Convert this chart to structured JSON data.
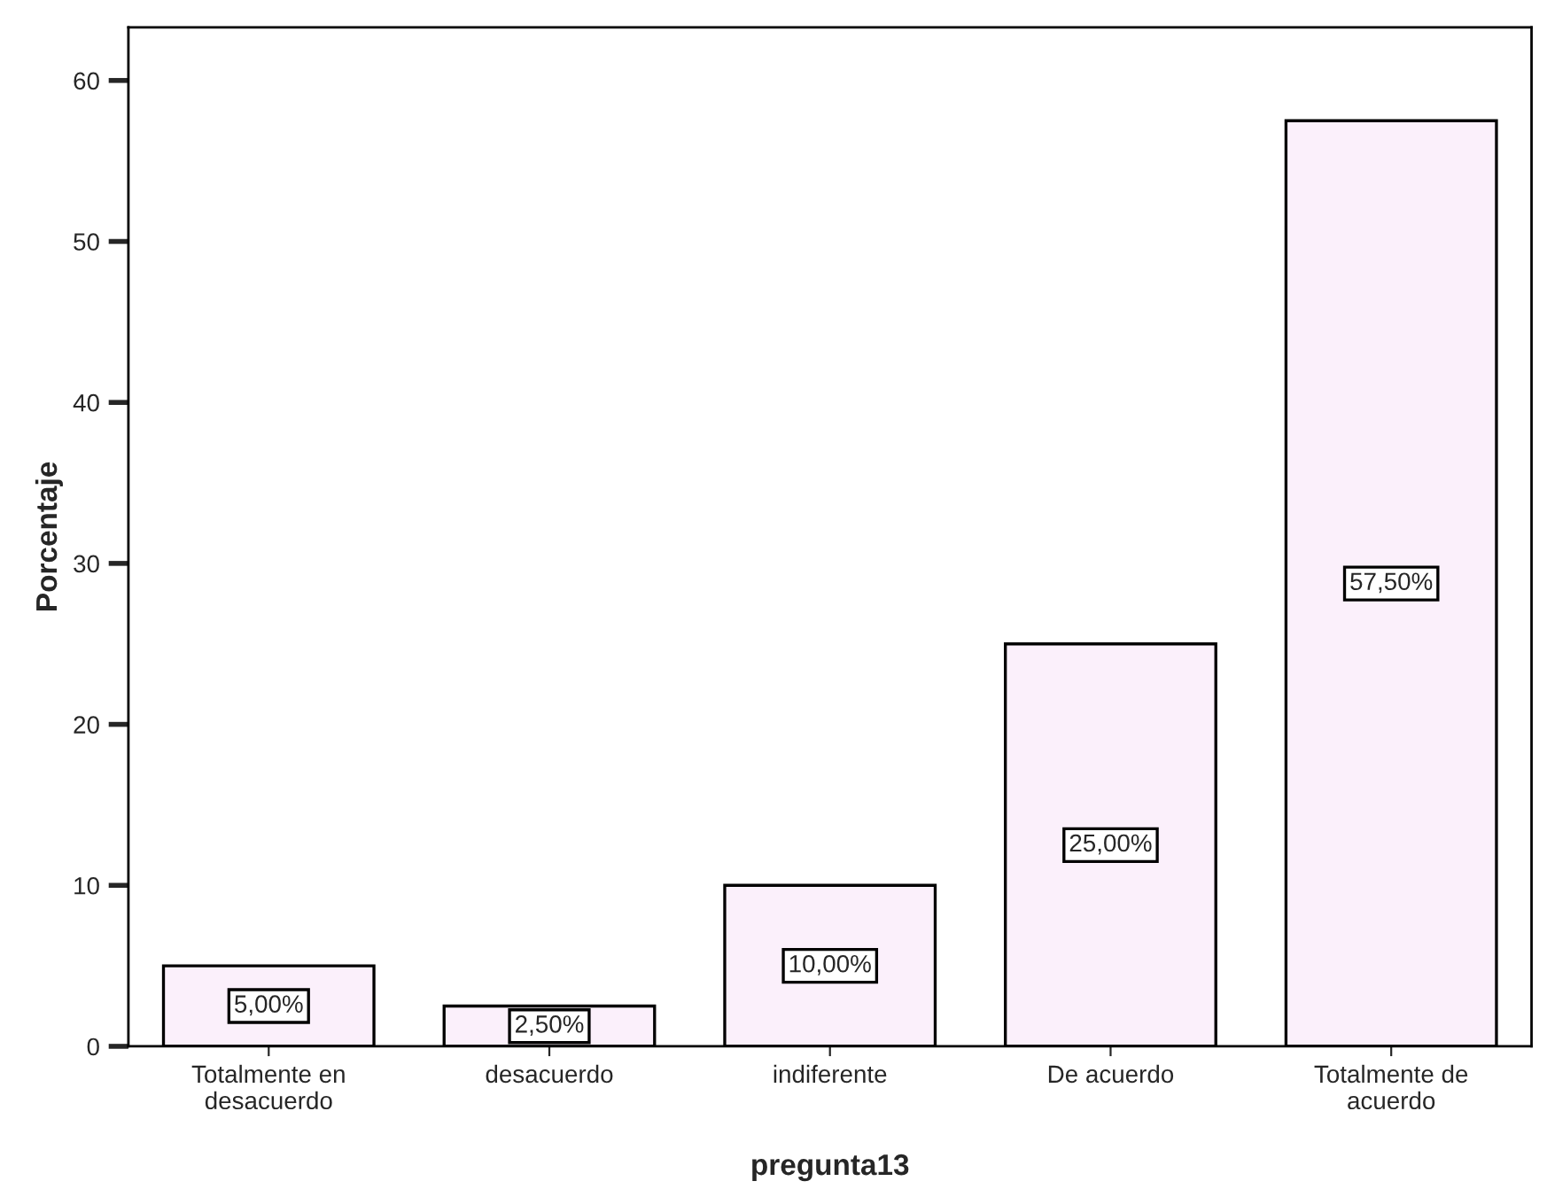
{
  "chart_data": {
    "type": "bar",
    "xlabel": "pregunta13",
    "ylabel": "Porcentaje",
    "categories": [
      "Totalmente en\ndesacuerdo",
      "desacuerdo",
      "indiferente",
      "De acuerdo",
      "Totalmente de\nacuerdo"
    ],
    "values": [
      5.0,
      2.5,
      10.0,
      25.0,
      57.5
    ],
    "value_labels": [
      "5,00%",
      "2,50%",
      "10,00%",
      "25,00%",
      "57,50%"
    ],
    "color": "#fbf0fb",
    "ylim": [
      0,
      63.3
    ],
    "yticks": [
      0,
      10,
      20,
      30,
      40,
      50,
      60
    ],
    "grid": false
  }
}
